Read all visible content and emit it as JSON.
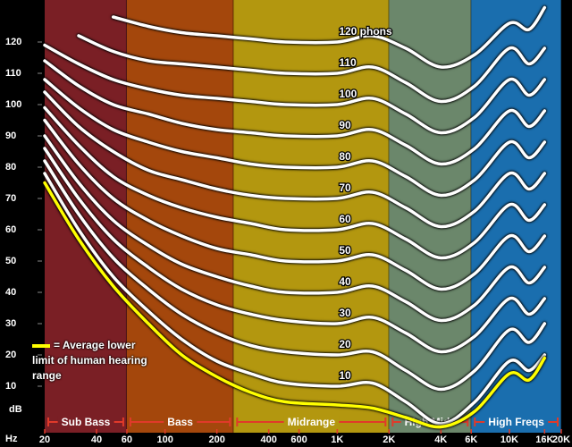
{
  "chart_data": {
    "type": "line",
    "x_scale": "log",
    "x_label": "Hz",
    "y_label": "dB",
    "xlim": [
      20,
      20000
    ],
    "ylim": [
      0,
      132
    ],
    "xticks": [
      20,
      40,
      60,
      100,
      200,
      400,
      600,
      {
        "value": 1000,
        "label": "1K"
      },
      {
        "value": 2000,
        "label": "2K"
      },
      {
        "value": 4000,
        "label": "4K"
      },
      {
        "value": 6000,
        "label": "6K"
      },
      {
        "value": 10000,
        "label": "10K"
      },
      {
        "value": 16000,
        "label": "16K"
      },
      {
        "value": 20000,
        "label": "20K"
      }
    ],
    "yticks": [
      10,
      20,
      30,
      40,
      50,
      60,
      70,
      80,
      90,
      100,
      110,
      120
    ],
    "bands": [
      {
        "label": "Sub Bass",
        "from": 20,
        "to": 60,
        "color": "#7a1f25"
      },
      {
        "label": "Bass",
        "from": 60,
        "to": 250,
        "color": "#a4470c"
      },
      {
        "label": "Midrange",
        "from": 250,
        "to": 2000,
        "color": "#b3970f"
      },
      {
        "label": "High Mids",
        "from": 2000,
        "to": 6000,
        "color": "#6b876b"
      },
      {
        "label": "High Freqs",
        "from": 6000,
        "to": 20000,
        "color": "#1a6eae"
      }
    ],
    "x": [
      20,
      31.5,
      50,
      80,
      125,
      200,
      315,
      500,
      1000,
      1600,
      2500,
      4000,
      6300,
      10000,
      13000,
      16000
    ],
    "series": [
      {
        "name": "120 phons",
        "color": "#ffffff",
        "values": [
          null,
          null,
          128,
          125,
          123,
          122,
          121,
          120,
          120,
          122,
          118,
          112,
          116,
          126,
          124,
          131
        ]
      },
      {
        "name": "110",
        "color": "#ffffff",
        "values": [
          null,
          122,
          117,
          114,
          113,
          112,
          111,
          110,
          110,
          112,
          107,
          101,
          106,
          118,
          113,
          118
        ]
      },
      {
        "name": "100",
        "color": "#ffffff",
        "values": [
          119,
          113,
          108,
          105,
          103,
          102,
          101,
          100,
          100,
          102,
          97,
          91,
          96,
          108,
          103,
          108
        ]
      },
      {
        "name": "90",
        "color": "#ffffff",
        "values": [
          114,
          106,
          100,
          97,
          94,
          92,
          91,
          90,
          90,
          92,
          87,
          81,
          86,
          98,
          93,
          98
        ]
      },
      {
        "name": "80",
        "color": "#ffffff",
        "values": [
          108,
          99,
          92,
          88,
          85,
          83,
          81,
          80,
          80,
          82,
          77,
          71,
          76,
          88,
          83,
          88
        ]
      },
      {
        "name": "70",
        "color": "#ffffff",
        "values": [
          104,
          93,
          85,
          79,
          76,
          73,
          71,
          70,
          70,
          72,
          67,
          61,
          66,
          78,
          73,
          78
        ]
      },
      {
        "name": "60",
        "color": "#ffffff",
        "values": [
          99,
          87,
          77,
          71,
          67,
          64,
          62,
          60,
          60,
          62,
          57,
          51,
          56,
          68,
          63,
          68
        ]
      },
      {
        "name": "50",
        "color": "#ffffff",
        "values": [
          95,
          81,
          70,
          63,
          58,
          54,
          52,
          50,
          50,
          52,
          47,
          41,
          46,
          58,
          53,
          58
        ]
      },
      {
        "name": "40",
        "color": "#ffffff",
        "values": [
          90,
          75,
          63,
          55,
          49,
          45,
          42,
          40,
          40,
          42,
          37,
          31,
          36,
          48,
          43,
          48
        ]
      },
      {
        "name": "30",
        "color": "#ffffff",
        "values": [
          86,
          70,
          57,
          48,
          41,
          36,
          33,
          31,
          30,
          32,
          27,
          21,
          26,
          38,
          33,
          38
        ]
      },
      {
        "name": "20",
        "color": "#ffffff",
        "values": [
          82,
          65,
          51,
          41,
          33,
          27,
          23,
          21,
          20,
          21,
          15,
          9,
          15,
          28,
          24,
          30
        ]
      },
      {
        "name": "10",
        "color": "#ffffff",
        "values": [
          78,
          60,
          45,
          34,
          25,
          18,
          14,
          11,
          10,
          11,
          5,
          -2,
          5,
          18,
          15,
          20
        ]
      },
      {
        "name": "= Average lower limit of human hearing range",
        "color": "#ffff00",
        "legend": true,
        "values": [
          75,
          57,
          42,
          30,
          20,
          13,
          8,
          5,
          4,
          3,
          0,
          -3,
          2,
          14,
          12,
          19
        ]
      }
    ]
  }
}
